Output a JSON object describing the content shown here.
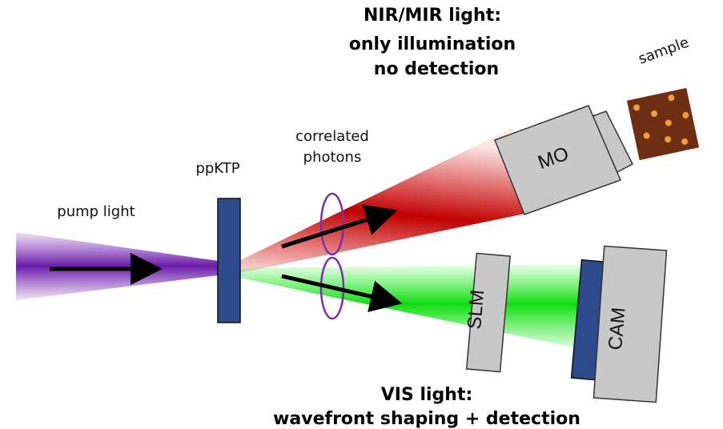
{
  "top_label": {
    "lines": [
      "NIR/MIR light:",
      "only illumination",
      "no detection"
    ]
  },
  "bottom_label": {
    "lines": [
      "VIS light:",
      "wavefront shaping + detection"
    ]
  },
  "labels": {
    "sample": "sample",
    "correlated": "correlated",
    "photons": "photons",
    "crystal": "ppKTP",
    "pump": "pump light"
  },
  "devices": {
    "objective": "MO",
    "modulator": "SLM",
    "camera": "CAM"
  }
}
